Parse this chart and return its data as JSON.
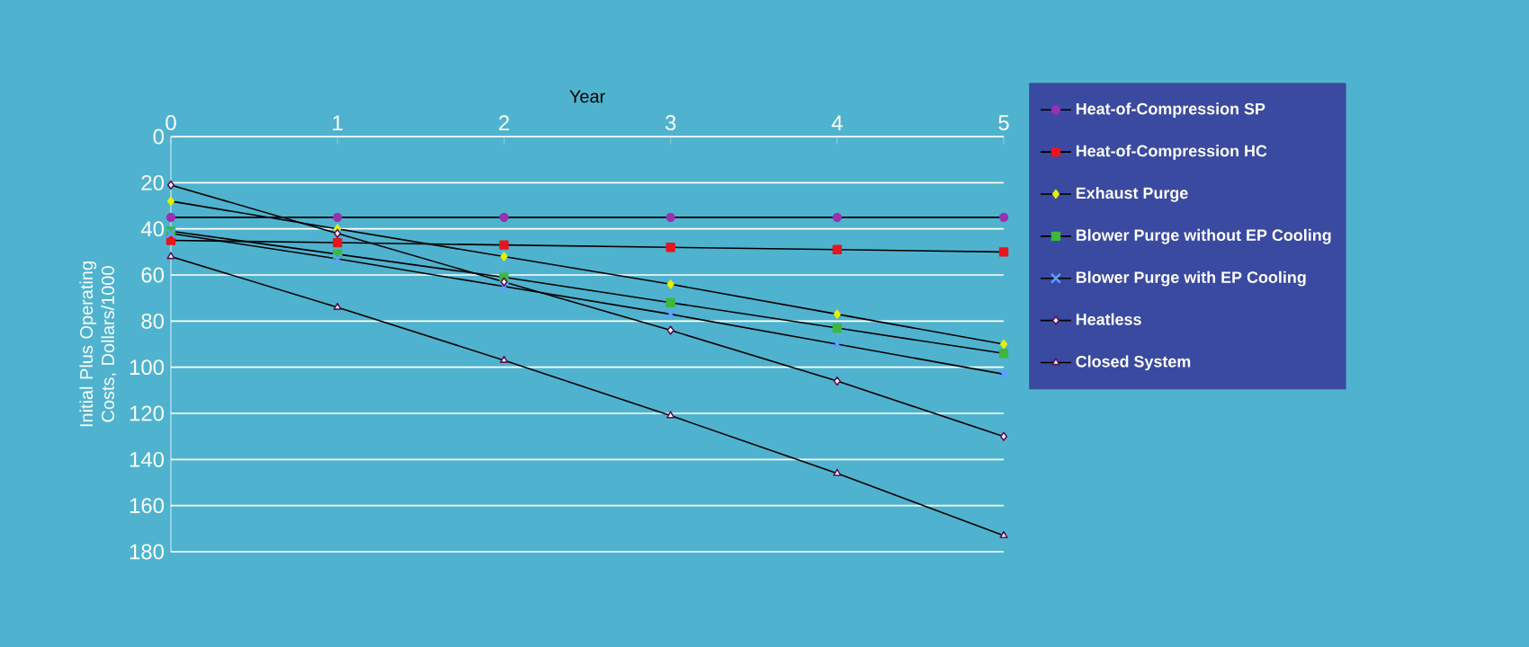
{
  "chart_data": {
    "type": "line",
    "xlabel": "Year",
    "ylabel": "Initial Plus Operating Costs, Dollars/1000",
    "x": [
      0,
      1,
      2,
      3,
      4,
      5
    ],
    "xlim": [
      0,
      5
    ],
    "xticks": [
      0,
      1,
      2,
      3,
      4,
      5
    ],
    "ylim": [
      180,
      0
    ],
    "yticks": [
      0,
      20,
      40,
      60,
      80,
      100,
      120,
      140,
      160,
      180
    ],
    "grid": "y",
    "legend": "right",
    "series": [
      {
        "name": "Heat-of-Compression SP",
        "color": "#9b30b0",
        "marker": "circle",
        "values": [
          35,
          35,
          35,
          35,
          35,
          35
        ]
      },
      {
        "name": "Heat-of-Compression HC",
        "color": "#e8141e",
        "marker": "square",
        "values": [
          45,
          46,
          47,
          48,
          49,
          50
        ]
      },
      {
        "name": "Exhaust Purge",
        "color": "#e8f000",
        "marker": "diamond",
        "values": [
          28,
          40,
          52,
          64,
          77,
          90
        ]
      },
      {
        "name": "Blower Purge without EP Cooling",
        "color": "#3cb83c",
        "marker": "square",
        "values": [
          41,
          51,
          61,
          72,
          83,
          94
        ]
      },
      {
        "name": "Blower Purge with EP Cooling",
        "color": "#5aa0ff",
        "marker": "cross",
        "values": [
          42,
          53,
          65,
          77,
          90,
          103
        ]
      },
      {
        "name": "Heatless",
        "color": "#ffffff",
        "marker": "diamond",
        "values": [
          21,
          42,
          63,
          84,
          106,
          130
        ]
      },
      {
        "name": "Closed System",
        "color": "#ffffff",
        "marker": "triangle",
        "values": [
          52,
          74,
          97,
          121,
          146,
          173
        ]
      }
    ]
  }
}
